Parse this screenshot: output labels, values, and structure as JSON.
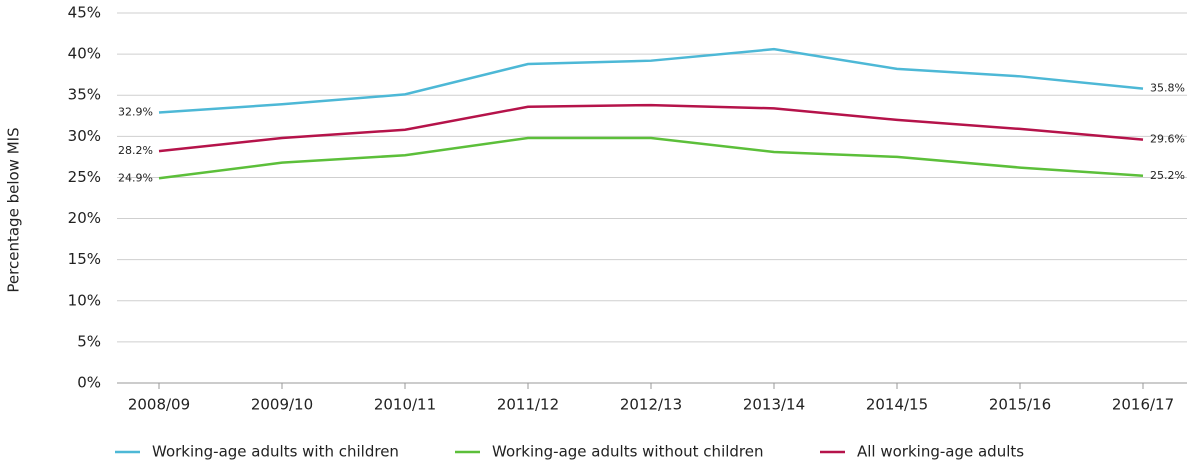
{
  "chart_data": {
    "type": "line",
    "y_label": "Percentage below MIS",
    "categories": [
      "2008/09",
      "2009/10",
      "2010/11",
      "2011/12",
      "2012/13",
      "2013/14",
      "2014/15",
      "2015/16",
      "2016/17"
    ],
    "series": [
      {
        "name": "Working-age adults with children",
        "color": "#4db8d6",
        "values": [
          32.9,
          33.9,
          35.1,
          38.8,
          39.2,
          40.6,
          38.2,
          37.3,
          35.8
        ],
        "value_labels": [
          "32.9%",
          null,
          null,
          null,
          null,
          null,
          null,
          null,
          "35.8%"
        ]
      },
      {
        "name": "Working-age adults without children",
        "color": "#5cbf3a",
        "values": [
          24.9,
          26.8,
          27.7,
          29.8,
          29.8,
          28.1,
          27.5,
          26.2,
          25.2
        ],
        "value_labels": [
          "24.9%",
          null,
          null,
          null,
          null,
          null,
          null,
          null,
          "25.2%"
        ]
      },
      {
        "name": "All working-age adults",
        "color": "#b5134a",
        "values": [
          28.2,
          29.8,
          30.8,
          33.6,
          33.8,
          33.4,
          32.0,
          30.9,
          29.6
        ],
        "value_labels": [
          "28.2%",
          null,
          null,
          null,
          null,
          null,
          null,
          null,
          "29.6%"
        ]
      }
    ],
    "ylim": [
      0,
      45
    ],
    "yticks": [
      {
        "value": 0,
        "label": "0%"
      },
      {
        "value": 5,
        "label": "5%"
      },
      {
        "value": 10,
        "label": "10%"
      },
      {
        "value": 15,
        "label": "15%"
      },
      {
        "value": 20,
        "label": "20%"
      },
      {
        "value": 25,
        "label": "25%"
      },
      {
        "value": 30,
        "label": "30%"
      },
      {
        "value": 35,
        "label": "35%"
      },
      {
        "value": 40,
        "label": "40%"
      },
      {
        "value": 45,
        "label": "45%"
      }
    ],
    "grid": true
  }
}
